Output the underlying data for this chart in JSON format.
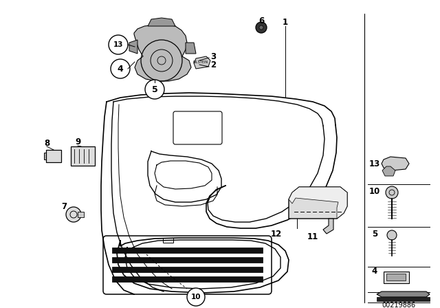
{
  "bg_color": "#ffffff",
  "fig_width": 6.4,
  "fig_height": 4.48,
  "dpi": 100,
  "diagram_number": "00219886"
}
